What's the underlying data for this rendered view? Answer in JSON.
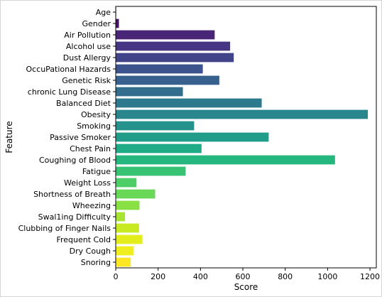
{
  "chart_data": {
    "type": "bar",
    "orientation": "horizontal",
    "xlabel": "Score",
    "ylabel": "Feature",
    "xlim": [
      0,
      1230
    ],
    "x_ticks": [
      0,
      200,
      400,
      600,
      800,
      1000,
      1200
    ],
    "grid": false,
    "legend": "none",
    "colormap": "viridis",
    "categories": [
      "Age",
      "Gender",
      "Air Pollution",
      "Alcohol use",
      "Dust Allergy",
      "OccuPational Hazards",
      "Genetic Risk",
      "chronic Lung Disease",
      "Balanced Diet",
      "Obesity",
      "Smoking",
      "Passive Smoker",
      "Chest Pain",
      "Coughing of Blood",
      "Fatigue",
      "Weight Loss",
      "Shortness of Breath",
      "Wheezing",
      "Swal1ing Difficulty",
      "Clubbing of Finger Nails",
      "Frequent Cold",
      "Dry Cough",
      "Snoring"
    ],
    "values": [
      2,
      15,
      467,
      540,
      557,
      411,
      489,
      317,
      689,
      1190,
      370,
      722,
      405,
      1035,
      330,
      98,
      186,
      112,
      44,
      110,
      126,
      85,
      71
    ],
    "colors": [
      "#440154",
      "#471466",
      "#482576",
      "#463582",
      "#42448a",
      "#3d538d",
      "#37608e",
      "#326d8e",
      "#2d798e",
      "#29868d",
      "#25928c",
      "#219e89",
      "#1fab85",
      "#25b77d",
      "#37c373",
      "#4ece66",
      "#6ad857",
      "#88e045",
      "#a8e533",
      "#c8ea23",
      "#e3ed1a",
      "#f0ee1d",
      "#fde725"
    ]
  }
}
